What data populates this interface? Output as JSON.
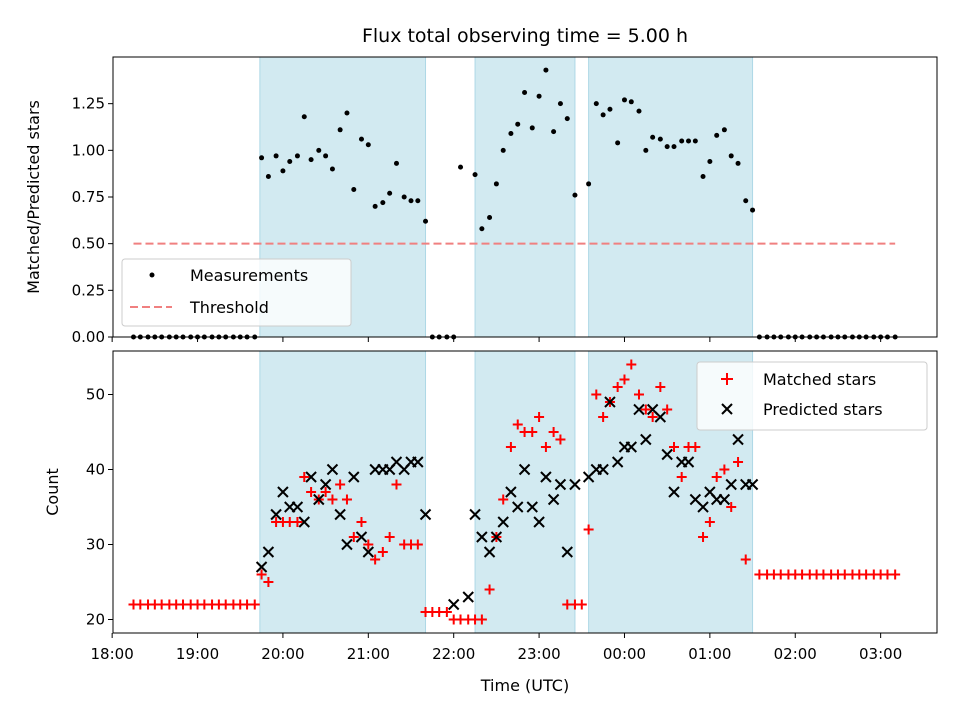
{
  "chart_data": [
    {
      "type": "scatter",
      "title": "Flux total observing time = 5.00 h",
      "xlabel": "",
      "ylabel": "Matched/Predicted stars",
      "ylim": [
        0,
        1.5
      ],
      "yticks": [
        "0.00",
        "0.25",
        "0.50",
        "0.75",
        "1.00",
        "1.25"
      ],
      "xlim": [
        18.01,
        27.66
      ],
      "legend": {
        "placement": "lower-left",
        "entries": [
          "Measurements",
          "Threshold"
        ]
      },
      "colors": {
        "points": "#000000",
        "threshold": "#f08080",
        "bands": "#add8e6"
      },
      "threshold": {
        "y": 0.5,
        "x_start": 18.25,
        "x_end": 27.17
      },
      "shaded_intervals": [
        [
          19.73,
          21.67
        ],
        [
          22.25,
          23.42
        ],
        [
          23.58,
          25.5
        ]
      ],
      "series": [
        {
          "name": "Measurements",
          "x": [
            18.25,
            18.33,
            18.42,
            18.5,
            18.58,
            18.67,
            18.75,
            18.83,
            18.92,
            19.0,
            19.08,
            19.17,
            19.25,
            19.33,
            19.42,
            19.5,
            19.58,
            19.67,
            19.75,
            19.83,
            19.92,
            20.0,
            20.08,
            20.17,
            20.25,
            20.33,
            20.42,
            20.5,
            20.58,
            20.67,
            20.75,
            20.83,
            20.92,
            21.0,
            21.08,
            21.17,
            21.25,
            21.33,
            21.42,
            21.5,
            21.58,
            21.67,
            21.75,
            21.83,
            21.92,
            22.0,
            22.08,
            22.25,
            22.33,
            22.42,
            22.5,
            22.58,
            22.67,
            22.75,
            22.83,
            22.92,
            23.0,
            23.08,
            23.17,
            23.25,
            23.33,
            23.42,
            23.58,
            23.67,
            23.75,
            23.83,
            23.92,
            24.0,
            24.08,
            24.17,
            24.25,
            24.33,
            24.42,
            24.5,
            24.58,
            24.67,
            24.75,
            24.83,
            24.92,
            25.0,
            25.08,
            25.17,
            25.25,
            25.33,
            25.42,
            25.5,
            25.58,
            25.67,
            25.75,
            25.83,
            25.92,
            26.0,
            26.08,
            26.17,
            26.25,
            26.33,
            26.42,
            26.5,
            26.58,
            26.67,
            26.75,
            26.83,
            26.92,
            27.0,
            27.08,
            27.17
          ],
          "y": [
            0,
            0,
            0,
            0,
            0,
            0,
            0,
            0,
            0,
            0,
            0,
            0,
            0,
            0,
            0,
            0,
            0,
            0,
            0.96,
            0.86,
            0.97,
            0.89,
            0.94,
            0.97,
            1.18,
            0.95,
            1.0,
            0.97,
            0.9,
            1.11,
            1.2,
            0.79,
            1.06,
            1.03,
            0.7,
            0.72,
            0.77,
            0.93,
            0.75,
            0.73,
            0.73,
            0.62,
            0,
            0,
            0,
            0,
            0.91,
            0.87,
            0.58,
            0.64,
            0.82,
            1.0,
            1.09,
            1.14,
            1.31,
            1.12,
            1.29,
            1.43,
            1.1,
            1.25,
            1.17,
            0.76,
            0.82,
            1.25,
            1.19,
            1.22,
            1.04,
            1.27,
            1.26,
            1.21,
            1.0,
            1.07,
            1.06,
            1.02,
            1.02,
            1.05,
            1.05,
            1.05,
            0.86,
            0.94,
            1.08,
            1.11,
            0.97,
            0.93,
            0.73,
            0.68,
            0,
            0,
            0,
            0,
            0,
            0,
            0,
            0,
            0,
            0,
            0,
            0,
            0,
            0,
            0,
            0,
            0,
            0,
            0,
            0
          ]
        }
      ]
    },
    {
      "type": "scatter",
      "title": "",
      "xlabel": "Time (UTC)",
      "ylabel": "Count",
      "ylim": [
        18.2,
        55.8
      ],
      "yticks": [
        "20",
        "30",
        "40",
        "50"
      ],
      "xlim": [
        18.01,
        27.66
      ],
      "xticks": [
        "18:00",
        "19:00",
        "20:00",
        "21:00",
        "22:00",
        "23:00",
        "00:00",
        "01:00",
        "02:00",
        "03:00"
      ],
      "legend": {
        "placement": "upper-right",
        "entries": [
          "Matched stars",
          "Predicted stars"
        ]
      },
      "colors": {
        "matched": "#ff0000",
        "predicted": "#000000",
        "bands": "#add8e6"
      },
      "shaded_intervals": [
        [
          19.73,
          21.67
        ],
        [
          22.25,
          23.42
        ],
        [
          23.58,
          25.5
        ]
      ],
      "series": [
        {
          "name": "Matched stars",
          "x": [
            18.25,
            18.33,
            18.42,
            18.5,
            18.58,
            18.67,
            18.75,
            18.83,
            18.92,
            19.0,
            19.08,
            19.17,
            19.25,
            19.33,
            19.42,
            19.5,
            19.58,
            19.67,
            19.75,
            19.83,
            19.92,
            20.0,
            20.08,
            20.17,
            20.25,
            20.33,
            20.42,
            20.5,
            20.58,
            20.67,
            20.75,
            20.83,
            20.92,
            21.0,
            21.08,
            21.17,
            21.25,
            21.33,
            21.42,
            21.5,
            21.58,
            21.67,
            21.75,
            21.83,
            21.92,
            22.0,
            22.08,
            22.17,
            22.25,
            22.33,
            22.42,
            22.5,
            22.58,
            22.67,
            22.75,
            22.83,
            22.92,
            23.0,
            23.08,
            23.17,
            23.25,
            23.33,
            23.42,
            23.5,
            23.58,
            23.67,
            23.75,
            23.83,
            23.92,
            24.0,
            24.08,
            24.17,
            24.25,
            24.33,
            24.42,
            24.5,
            24.58,
            24.67,
            24.75,
            24.83,
            24.92,
            25.0,
            25.08,
            25.17,
            25.25,
            25.33,
            25.42,
            25.58,
            25.67,
            25.75,
            25.83,
            25.92,
            26.0,
            26.08,
            26.17,
            26.25,
            26.33,
            26.42,
            26.5,
            26.58,
            26.67,
            26.75,
            26.83,
            26.92,
            27.0,
            27.08,
            27.17
          ],
          "y": [
            22,
            22,
            22,
            22,
            22,
            22,
            22,
            22,
            22,
            22,
            22,
            22,
            22,
            22,
            22,
            22,
            22,
            22,
            26,
            25,
            33,
            33,
            33,
            33,
            39,
            37,
            36,
            37,
            36,
            38,
            36,
            31,
            33,
            30,
            28,
            29,
            31,
            38,
            30,
            30,
            30,
            21,
            21,
            21,
            21,
            20,
            20,
            20,
            20,
            20,
            24,
            31,
            36,
            43,
            46,
            45,
            45,
            47,
            43,
            45,
            44,
            22,
            22,
            22,
            32,
            50,
            47,
            49,
            51,
            52,
            54,
            50,
            48,
            47,
            51,
            48,
            43,
            39,
            43,
            43,
            31,
            33,
            39,
            40,
            35,
            41,
            28,
            26,
            26,
            26,
            26,
            26,
            26,
            26,
            26,
            26,
            26,
            26,
            26,
            26,
            26,
            26,
            26,
            26,
            26,
            26,
            26
          ]
        },
        {
          "name": "Predicted stars",
          "x": [
            19.75,
            19.83,
            19.92,
            20.0,
            20.08,
            20.17,
            20.25,
            20.33,
            20.42,
            20.5,
            20.58,
            20.67,
            20.75,
            20.83,
            20.92,
            21.0,
            21.08,
            21.17,
            21.25,
            21.33,
            21.42,
            21.5,
            21.58,
            21.67,
            22.0,
            22.17,
            22.25,
            22.33,
            22.42,
            22.5,
            22.58,
            22.67,
            22.75,
            22.83,
            22.92,
            23.0,
            23.08,
            23.17,
            23.25,
            23.33,
            23.42,
            23.58,
            23.67,
            23.75,
            23.83,
            23.92,
            24.0,
            24.08,
            24.17,
            24.25,
            24.33,
            24.42,
            24.5,
            24.58,
            24.67,
            24.75,
            24.83,
            24.92,
            25.0,
            25.08,
            25.17,
            25.25,
            25.33,
            25.42,
            25.5
          ],
          "y": [
            27,
            29,
            34,
            37,
            35,
            35,
            33,
            39,
            36,
            38,
            40,
            34,
            30,
            39,
            31,
            29,
            40,
            40,
            40,
            41,
            40,
            41,
            41,
            34,
            22,
            23,
            34,
            31,
            29,
            31,
            33,
            37,
            35,
            40,
            35,
            33,
            39,
            36,
            38,
            29,
            38,
            39,
            40,
            40,
            49,
            41,
            43,
            43,
            48,
            44,
            48,
            47,
            42,
            37,
            41,
            41,
            36,
            35,
            37,
            36,
            36,
            38,
            44,
            38,
            38
          ]
        }
      ]
    }
  ]
}
